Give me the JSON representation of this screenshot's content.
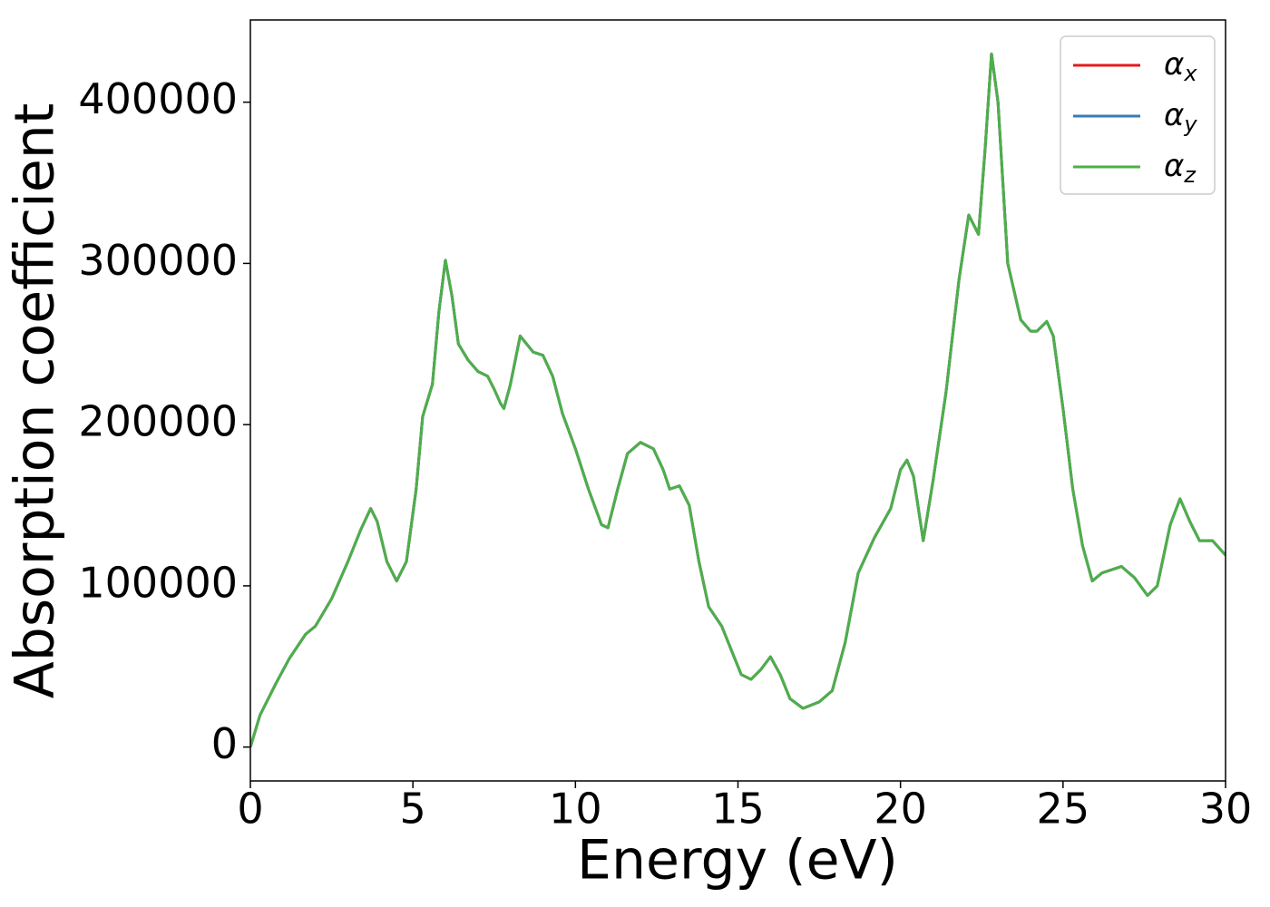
{
  "chart_data": {
    "type": "line",
    "xlabel": "Energy (eV)",
    "ylabel": "Absorption coefficient",
    "x": [
      0,
      0.3,
      0.8,
      1.2,
      1.7,
      2.0,
      2.5,
      3.0,
      3.4,
      3.7,
      3.9,
      4.2,
      4.5,
      4.8,
      5.1,
      5.3,
      5.6,
      5.8,
      6.0,
      6.2,
      6.4,
      6.7,
      7.0,
      7.3,
      7.5,
      7.7,
      7.8,
      8.0,
      8.3,
      8.5,
      8.7,
      9.0,
      9.3,
      9.6,
      10.0,
      10.4,
      10.8,
      11.0,
      11.3,
      11.6,
      12.0,
      12.4,
      12.7,
      12.9,
      13.2,
      13.5,
      13.8,
      14.1,
      14.5,
      14.8,
      15.1,
      15.4,
      15.7,
      16.0,
      16.3,
      16.6,
      17.0,
      17.5,
      17.9,
      18.3,
      18.7,
      19.2,
      19.7,
      20.0,
      20.2,
      20.4,
      20.7,
      21.0,
      21.4,
      21.8,
      22.1,
      22.4,
      22.6,
      22.8,
      23.0,
      23.3,
      23.7,
      24.0,
      24.2,
      24.5,
      24.7,
      25.0,
      25.3,
      25.6,
      25.9,
      26.2,
      26.8,
      27.2,
      27.6,
      27.9,
      28.3,
      28.6,
      28.9,
      29.2,
      29.6,
      30.0
    ],
    "series": [
      {
        "name": "αx",
        "color": "#e41a1c",
        "values": [
          0,
          20000,
          40000,
          55000,
          70000,
          75000,
          92000,
          115000,
          135000,
          148000,
          140000,
          115000,
          103000,
          115000,
          160000,
          205000,
          225000,
          270000,
          302000,
          280000,
          250000,
          240000,
          233000,
          230000,
          222000,
          213000,
          210000,
          225000,
          255000,
          250000,
          245000,
          243000,
          230000,
          207000,
          185000,
          160000,
          138000,
          136000,
          160000,
          182000,
          189000,
          185000,
          172000,
          160000,
          162000,
          150000,
          115000,
          87000,
          75000,
          60000,
          45000,
          42000,
          48000,
          56000,
          45000,
          30000,
          24000,
          28000,
          35000,
          65000,
          108000,
          130000,
          148000,
          172000,
          178000,
          168000,
          128000,
          165000,
          220000,
          290000,
          330000,
          318000,
          370000,
          430000,
          400000,
          300000,
          265000,
          258000,
          258000,
          264000,
          255000,
          210000,
          160000,
          125000,
          103000,
          108000,
          112000,
          105000,
          94000,
          100000,
          138000,
          154000,
          140000,
          128000,
          128000,
          119000
        ]
      },
      {
        "name": "αy",
        "color": "#377eb8",
        "values": [
          0,
          20000,
          40000,
          55000,
          70000,
          75000,
          92000,
          115000,
          135000,
          148000,
          140000,
          115000,
          103000,
          115000,
          160000,
          205000,
          225000,
          270000,
          302000,
          280000,
          250000,
          240000,
          233000,
          230000,
          222000,
          213000,
          210000,
          225000,
          255000,
          250000,
          245000,
          243000,
          230000,
          207000,
          185000,
          160000,
          138000,
          136000,
          160000,
          182000,
          189000,
          185000,
          172000,
          160000,
          162000,
          150000,
          115000,
          87000,
          75000,
          60000,
          45000,
          42000,
          48000,
          56000,
          45000,
          30000,
          24000,
          28000,
          35000,
          65000,
          108000,
          130000,
          148000,
          172000,
          178000,
          168000,
          128000,
          165000,
          220000,
          290000,
          330000,
          318000,
          370000,
          430000,
          400000,
          300000,
          265000,
          258000,
          258000,
          264000,
          255000,
          210000,
          160000,
          125000,
          103000,
          108000,
          112000,
          105000,
          94000,
          100000,
          138000,
          154000,
          140000,
          128000,
          128000,
          119000
        ]
      },
      {
        "name": "αz",
        "color": "#4daf4a",
        "values": [
          0,
          20000,
          40000,
          55000,
          70000,
          75000,
          92000,
          115000,
          135000,
          148000,
          140000,
          115000,
          103000,
          115000,
          160000,
          205000,
          225000,
          270000,
          302000,
          280000,
          250000,
          240000,
          233000,
          230000,
          222000,
          213000,
          210000,
          225000,
          255000,
          250000,
          245000,
          243000,
          230000,
          207000,
          185000,
          160000,
          138000,
          136000,
          160000,
          182000,
          189000,
          185000,
          172000,
          160000,
          162000,
          150000,
          115000,
          87000,
          75000,
          60000,
          45000,
          42000,
          48000,
          56000,
          45000,
          30000,
          24000,
          28000,
          35000,
          65000,
          108000,
          130000,
          148000,
          172000,
          178000,
          168000,
          128000,
          165000,
          220000,
          290000,
          330000,
          318000,
          370000,
          430000,
          400000,
          300000,
          265000,
          258000,
          258000,
          264000,
          255000,
          210000,
          160000,
          125000,
          103000,
          108000,
          112000,
          105000,
          94000,
          100000,
          138000,
          154000,
          140000,
          128000,
          128000,
          119000
        ]
      }
    ],
    "xlim": [
      0,
      30
    ],
    "xticks": [
      0,
      5,
      10,
      15,
      20,
      25,
      30
    ],
    "ylim": [
      -21000,
      451000
    ],
    "yticks": [
      0,
      100000,
      200000,
      300000,
      400000
    ],
    "legend": "upper right",
    "grid": false
  }
}
